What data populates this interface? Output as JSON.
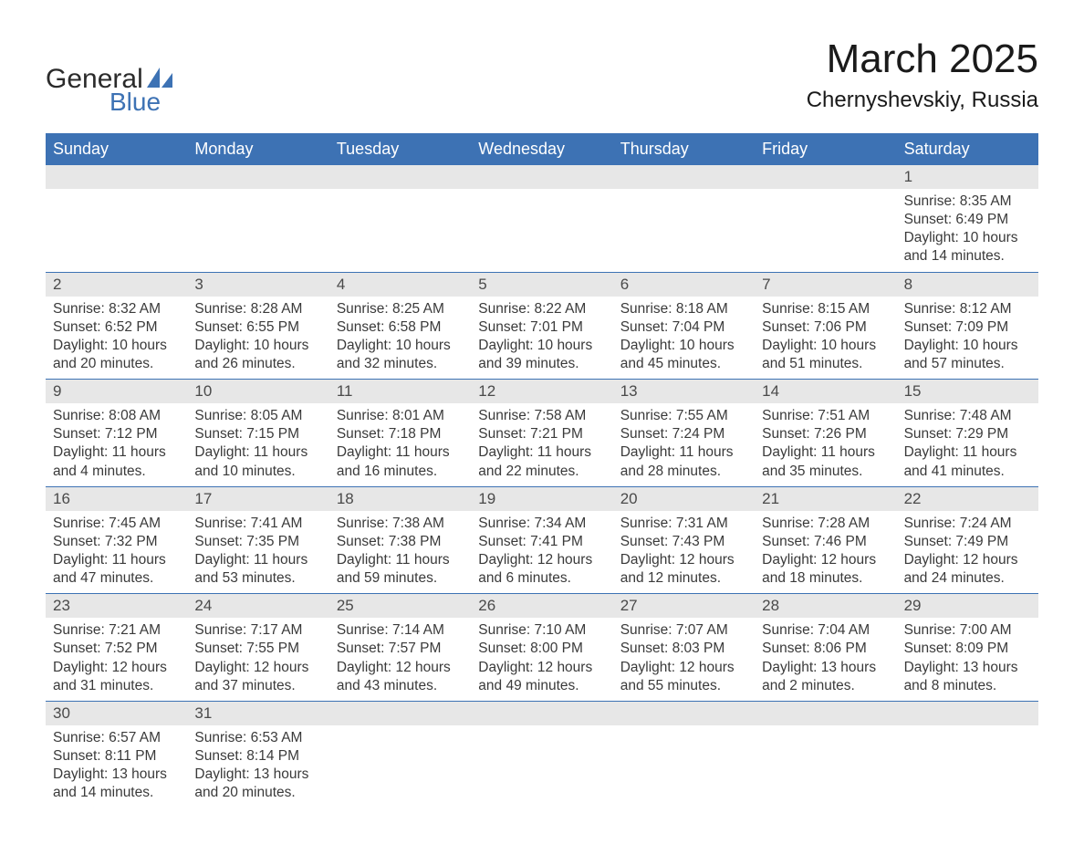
{
  "brand": {
    "line1": "General",
    "line2": "Blue",
    "primary_color": "#3d72b4",
    "text_color": "#2b2b2b"
  },
  "title": {
    "month": "March 2025",
    "location": "Chernyshevskiy, Russia"
  },
  "colors": {
    "header_bg": "#3d72b4",
    "header_text": "#ffffff",
    "daybar_bg": "#e7e7e7",
    "daybar_text": "#4a4a4a",
    "body_text": "#3a3a3a",
    "border": "#3d72b4",
    "page_bg": "#ffffff"
  },
  "typography": {
    "title_fontsize": 44,
    "location_fontsize": 24,
    "header_fontsize": 18,
    "daynum_fontsize": 17,
    "detail_fontsize": 15.5,
    "logo_fontsize": 30
  },
  "weekdays": [
    "Sunday",
    "Monday",
    "Tuesday",
    "Wednesday",
    "Thursday",
    "Friday",
    "Saturday"
  ],
  "labels": {
    "sunrise_prefix": "Sunrise: ",
    "sunset_prefix": "Sunset: ",
    "daylight_prefix": "Daylight: ",
    "and_word": "and ",
    "minutes_suffix": " minutes.",
    "hours_word": " hours"
  },
  "weeks": [
    [
      null,
      null,
      null,
      null,
      null,
      null,
      {
        "n": "1",
        "sunrise": "8:35 AM",
        "sunset": "6:49 PM",
        "dl_h": "10",
        "dl_m": "14"
      }
    ],
    [
      {
        "n": "2",
        "sunrise": "8:32 AM",
        "sunset": "6:52 PM",
        "dl_h": "10",
        "dl_m": "20"
      },
      {
        "n": "3",
        "sunrise": "8:28 AM",
        "sunset": "6:55 PM",
        "dl_h": "10",
        "dl_m": "26"
      },
      {
        "n": "4",
        "sunrise": "8:25 AM",
        "sunset": "6:58 PM",
        "dl_h": "10",
        "dl_m": "32"
      },
      {
        "n": "5",
        "sunrise": "8:22 AM",
        "sunset": "7:01 PM",
        "dl_h": "10",
        "dl_m": "39"
      },
      {
        "n": "6",
        "sunrise": "8:18 AM",
        "sunset": "7:04 PM",
        "dl_h": "10",
        "dl_m": "45"
      },
      {
        "n": "7",
        "sunrise": "8:15 AM",
        "sunset": "7:06 PM",
        "dl_h": "10",
        "dl_m": "51"
      },
      {
        "n": "8",
        "sunrise": "8:12 AM",
        "sunset": "7:09 PM",
        "dl_h": "10",
        "dl_m": "57"
      }
    ],
    [
      {
        "n": "9",
        "sunrise": "8:08 AM",
        "sunset": "7:12 PM",
        "dl_h": "11",
        "dl_m": "4"
      },
      {
        "n": "10",
        "sunrise": "8:05 AM",
        "sunset": "7:15 PM",
        "dl_h": "11",
        "dl_m": "10"
      },
      {
        "n": "11",
        "sunrise": "8:01 AM",
        "sunset": "7:18 PM",
        "dl_h": "11",
        "dl_m": "16"
      },
      {
        "n": "12",
        "sunrise": "7:58 AM",
        "sunset": "7:21 PM",
        "dl_h": "11",
        "dl_m": "22"
      },
      {
        "n": "13",
        "sunrise": "7:55 AM",
        "sunset": "7:24 PM",
        "dl_h": "11",
        "dl_m": "28"
      },
      {
        "n": "14",
        "sunrise": "7:51 AM",
        "sunset": "7:26 PM",
        "dl_h": "11",
        "dl_m": "35"
      },
      {
        "n": "15",
        "sunrise": "7:48 AM",
        "sunset": "7:29 PM",
        "dl_h": "11",
        "dl_m": "41"
      }
    ],
    [
      {
        "n": "16",
        "sunrise": "7:45 AM",
        "sunset": "7:32 PM",
        "dl_h": "11",
        "dl_m": "47"
      },
      {
        "n": "17",
        "sunrise": "7:41 AM",
        "sunset": "7:35 PM",
        "dl_h": "11",
        "dl_m": "53"
      },
      {
        "n": "18",
        "sunrise": "7:38 AM",
        "sunset": "7:38 PM",
        "dl_h": "11",
        "dl_m": "59"
      },
      {
        "n": "19",
        "sunrise": "7:34 AM",
        "sunset": "7:41 PM",
        "dl_h": "12",
        "dl_m": "6"
      },
      {
        "n": "20",
        "sunrise": "7:31 AM",
        "sunset": "7:43 PM",
        "dl_h": "12",
        "dl_m": "12"
      },
      {
        "n": "21",
        "sunrise": "7:28 AM",
        "sunset": "7:46 PM",
        "dl_h": "12",
        "dl_m": "18"
      },
      {
        "n": "22",
        "sunrise": "7:24 AM",
        "sunset": "7:49 PM",
        "dl_h": "12",
        "dl_m": "24"
      }
    ],
    [
      {
        "n": "23",
        "sunrise": "7:21 AM",
        "sunset": "7:52 PM",
        "dl_h": "12",
        "dl_m": "31"
      },
      {
        "n": "24",
        "sunrise": "7:17 AM",
        "sunset": "7:55 PM",
        "dl_h": "12",
        "dl_m": "37"
      },
      {
        "n": "25",
        "sunrise": "7:14 AM",
        "sunset": "7:57 PM",
        "dl_h": "12",
        "dl_m": "43"
      },
      {
        "n": "26",
        "sunrise": "7:10 AM",
        "sunset": "8:00 PM",
        "dl_h": "12",
        "dl_m": "49"
      },
      {
        "n": "27",
        "sunrise": "7:07 AM",
        "sunset": "8:03 PM",
        "dl_h": "12",
        "dl_m": "55"
      },
      {
        "n": "28",
        "sunrise": "7:04 AM",
        "sunset": "8:06 PM",
        "dl_h": "13",
        "dl_m": "2"
      },
      {
        "n": "29",
        "sunrise": "7:00 AM",
        "sunset": "8:09 PM",
        "dl_h": "13",
        "dl_m": "8"
      }
    ],
    [
      {
        "n": "30",
        "sunrise": "6:57 AM",
        "sunset": "8:11 PM",
        "dl_h": "13",
        "dl_m": "14"
      },
      {
        "n": "31",
        "sunrise": "6:53 AM",
        "sunset": "8:14 PM",
        "dl_h": "13",
        "dl_m": "20"
      },
      null,
      null,
      null,
      null,
      null
    ]
  ]
}
